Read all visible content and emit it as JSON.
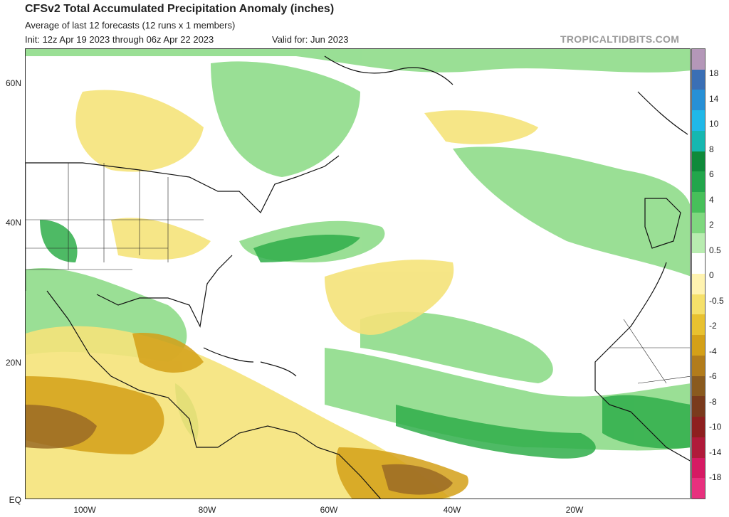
{
  "header": {
    "title": "CFSv2 Total Accumulated Precipitation Anomaly (inches)",
    "subtitle": "Average of last 12 forecasts (12 runs x 1 members)",
    "init": "Init: 12z Apr 19 2023 through 06z Apr 22 2023",
    "valid": "Valid for: Jun 2023",
    "brand": "TROPICALTIDBITS.COM"
  },
  "map": {
    "lat_labels": [
      "60N",
      "40N",
      "20N",
      "EQ"
    ],
    "lon_labels": [
      "100W",
      "80W",
      "60W",
      "40W",
      "20W"
    ]
  },
  "colorbar": {
    "labels": [
      "18",
      "14",
      "10",
      "8",
      "6",
      "4",
      "2",
      "0.5",
      "0",
      "-0.5",
      "-2",
      "-4",
      "-6",
      "-8",
      "-10",
      "-14",
      "-18"
    ],
    "colors": [
      "#b497b8",
      "#3a6fb5",
      "#2790d6",
      "#20b8e8",
      "#16b7b0",
      "#0f8a3a",
      "#22a64b",
      "#47c05a",
      "#7fd87f",
      "#b8ecb0",
      "#ffffff",
      "#fff3b0",
      "#f5e06a",
      "#e8c130",
      "#d4a018",
      "#b27c1b",
      "#8a5a1e",
      "#7a3a1c",
      "#8e1f1f",
      "#b01a3a",
      "#d61a63",
      "#e8307e"
    ]
  }
}
